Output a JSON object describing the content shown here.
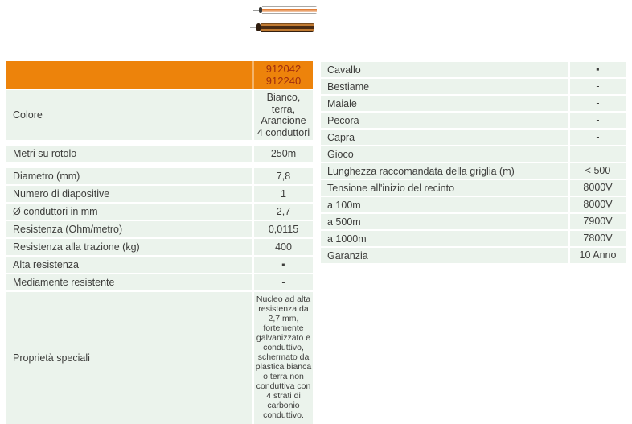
{
  "colors": {
    "header_bg": "#ED830B",
    "header_text": "#9E2D10",
    "row_bg": "#EBF3EC",
    "text": "#3D3D3B"
  },
  "images": {
    "cable_top": "rope-white-orange-sample",
    "cable_bottom": "rope-brown-sample"
  },
  "left_table": {
    "header_ids": "912042\n912240",
    "rows": [
      {
        "label": "Colore",
        "value": "Bianco, terra,\nArancione\n4 conduttori"
      },
      {
        "label": "Metri su rotolo",
        "value": "250m"
      },
      {
        "label": "Diametro (mm)",
        "value": "7,8"
      },
      {
        "label": "Numero di diapositive",
        "value": "1"
      },
      {
        "label": "Ø conduttori in mm",
        "value": "2,7"
      },
      {
        "label": "Resistenza (Ohm/metro)",
        "value": "0,0115"
      },
      {
        "label": "Resistenza alla trazione (kg)",
        "value": "400"
      },
      {
        "label": "Alta resistenza",
        "value": "▪"
      },
      {
        "label": "Mediamente resistente",
        "value": "-"
      },
      {
        "label": "Proprietà speciali",
        "value": "Nucleo ad alta resistenza da 2,7 mm, fortemente galvanizzato e conduttivo, schermato da plastica bianca o terra non conduttiva con 4 strati di carbonio conduttivo."
      }
    ]
  },
  "right_table": {
    "rows": [
      {
        "label": "Cavallo",
        "value": "▪"
      },
      {
        "label": "Bestiame",
        "value": "-"
      },
      {
        "label": "Maiale",
        "value": "-"
      },
      {
        "label": "Pecora",
        "value": "-"
      },
      {
        "label": "Capra",
        "value": "-"
      },
      {
        "label": "Gioco",
        "value": "-"
      },
      {
        "label": "Lunghezza raccomandata della griglia (m)",
        "value": "< 500"
      },
      {
        "label": "Tensione all'inizio del recinto",
        "value": "8000V"
      },
      {
        "label": "a 100m",
        "value": "8000V"
      },
      {
        "label": "a 500m",
        "value": "7900V"
      },
      {
        "label": "a 1000m",
        "value": "7800V"
      },
      {
        "label": "Garanzia",
        "value": "10 Anno"
      }
    ]
  }
}
